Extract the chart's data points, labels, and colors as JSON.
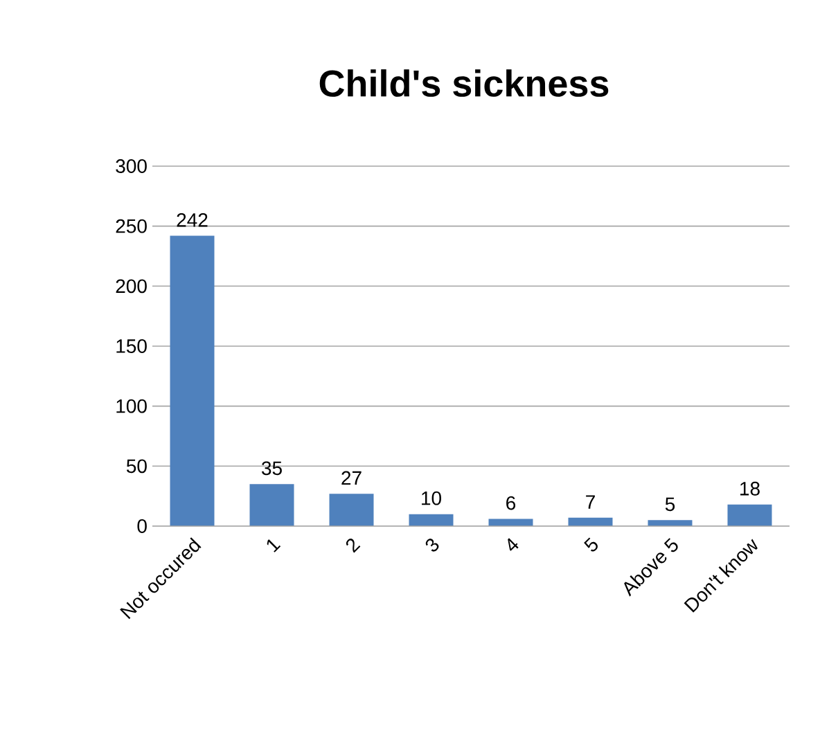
{
  "chart_data": {
    "type": "bar",
    "title": "Child's sickness",
    "categories": [
      "Not occured",
      "1",
      "2",
      "3",
      "4",
      "5",
      "Above 5",
      "Don't know"
    ],
    "values": [
      242,
      35,
      27,
      10,
      6,
      7,
      5,
      18
    ],
    "color": "#4f81bd",
    "ylim": [
      0,
      300
    ],
    "yticks": [
      0,
      50,
      100,
      150,
      200,
      250,
      300
    ],
    "grid": "y",
    "data_labels": true
  }
}
